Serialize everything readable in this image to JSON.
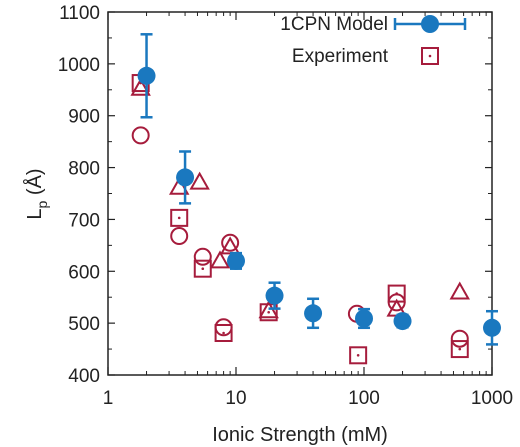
{
  "chart_data": {
    "type": "scatter",
    "title": "",
    "xlabel": "Ionic Strength (mM)",
    "ylabel_main": "L",
    "ylabel_sub": "p",
    "ylabel_unit": " (Å)",
    "xscale": "log",
    "xlim": [
      1,
      1000
    ],
    "ylim": [
      400,
      1100
    ],
    "x_ticks": [
      1,
      10,
      100,
      1000
    ],
    "x_tick_labels": [
      "1",
      "10",
      "100",
      "1000"
    ],
    "y_ticks": [
      400,
      500,
      600,
      700,
      800,
      900,
      1000,
      1100
    ],
    "y_tick_labels": [
      "400",
      "500",
      "600",
      "700",
      "800",
      "900",
      "1000",
      "1100"
    ],
    "grid": false,
    "legend_position": "top-right",
    "colors": {
      "model": "#1a78bf",
      "experiment": "#a61c3c",
      "axis": "#222222"
    },
    "series": [
      {
        "name": "1CPN Model",
        "marker": "filled-circle-errorbar",
        "points": [
          {
            "x": 2,
            "y": 977,
            "err": 80
          },
          {
            "x": 4,
            "y": 781,
            "err": 50
          },
          {
            "x": 10,
            "y": 620,
            "err": 15
          },
          {
            "x": 20,
            "y": 553,
            "err": 25
          },
          {
            "x": 40,
            "y": 519,
            "err": 28
          },
          {
            "x": 100,
            "y": 509,
            "err": 18
          },
          {
            "x": 200,
            "y": 504,
            "err": 12
          },
          {
            "x": 1000,
            "y": 491,
            "err": 32
          }
        ]
      },
      {
        "name": "Experiment",
        "marker": "open-square-dot",
        "points": [
          {
            "x": 1.8,
            "y": 963
          },
          {
            "x": 3.6,
            "y": 703
          },
          {
            "x": 5.5,
            "y": 605
          },
          {
            "x": 8,
            "y": 481
          },
          {
            "x": 18,
            "y": 521
          },
          {
            "x": 90,
            "y": 438
          },
          {
            "x": 180,
            "y": 557
          },
          {
            "x": 560,
            "y": 450
          }
        ]
      },
      {
        "marker": "open-circle",
        "points": [
          {
            "x": 1.8,
            "y": 862
          },
          {
            "x": 3.6,
            "y": 668
          },
          {
            "x": 5.5,
            "y": 628
          },
          {
            "x": 8,
            "y": 492
          },
          {
            "x": 9,
            "y": 655
          },
          {
            "x": 88,
            "y": 518
          },
          {
            "x": 180,
            "y": 540
          },
          {
            "x": 560,
            "y": 470
          }
        ]
      },
      {
        "marker": "open-triangle",
        "points": [
          {
            "x": 1.8,
            "y": 953
          },
          {
            "x": 3.6,
            "y": 762
          },
          {
            "x": 5.2,
            "y": 772
          },
          {
            "x": 7.5,
            "y": 620
          },
          {
            "x": 9,
            "y": 647
          },
          {
            "x": 18,
            "y": 524
          },
          {
            "x": 180,
            "y": 527
          },
          {
            "x": 560,
            "y": 560
          }
        ]
      }
    ]
  }
}
